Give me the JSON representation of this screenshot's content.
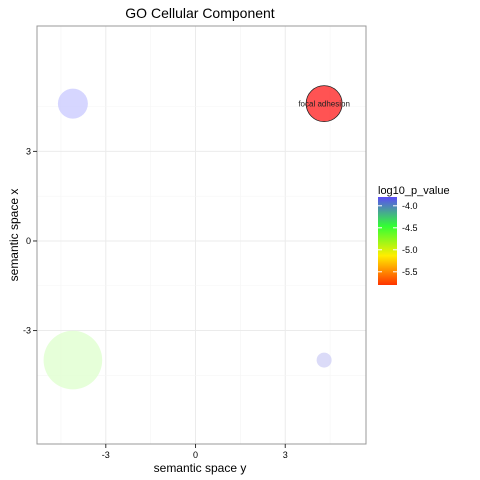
{
  "chart_data": {
    "type": "scatter",
    "title": "GO Cellular Component",
    "xlabel": "semantic space y",
    "ylabel": "semantic space x",
    "xlim": [
      -5.3,
      5.7
    ],
    "ylim": [
      -6.8,
      7.2
    ],
    "x_ticks": [
      -3,
      0,
      3
    ],
    "x_tick_labels": [
      "-3",
      "0",
      "3"
    ],
    "y_ticks": [
      -3,
      0,
      3
    ],
    "y_tick_labels": [
      "-3",
      "0",
      "3"
    ],
    "grid": true,
    "legend_placement": "right",
    "legend": {
      "title": "log10_p_value",
      "min": -5.8,
      "max": -3.8,
      "ticks": [
        -4.0,
        -4.5,
        -5.0,
        -5.5
      ],
      "tick_labels": [
        "-4.0",
        "-4.5",
        "-5.0",
        "-5.5"
      ],
      "colors": [
        "#ff3300",
        "#ffee00",
        "#33ff33",
        "#5b4cf5"
      ]
    },
    "points": [
      {
        "x": 4.3,
        "y": 4.6,
        "log10_p_value": -5.8,
        "size": 1.0,
        "color": "#ff1a1a",
        "label": "focal adhesion"
      },
      {
        "x": -4.1,
        "y": 4.6,
        "log10_p_value": -3.9,
        "size": 0.8,
        "color": "#c8c8ff",
        "label": ""
      },
      {
        "x": -4.1,
        "y": -3.99,
        "log10_p_value": -4.85,
        "size": 1.75,
        "color": "#ddffcc",
        "label": ""
      },
      {
        "x": 4.3,
        "y": -3.99,
        "log10_p_value": -3.9,
        "size": 0.3,
        "color": "#cfcff5",
        "label": ""
      }
    ]
  }
}
